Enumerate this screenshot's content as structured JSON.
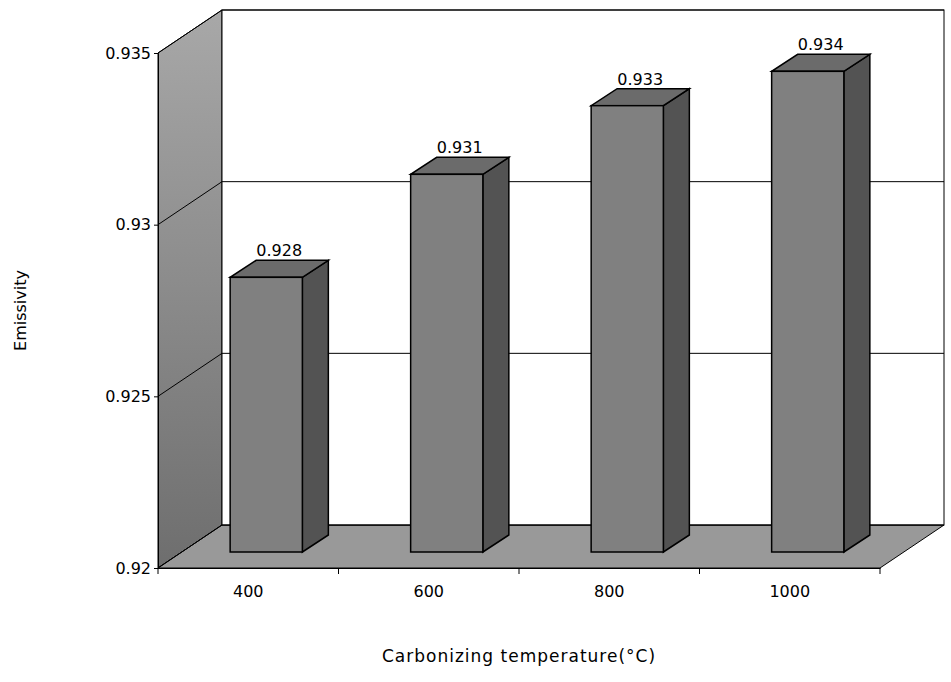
{
  "chart_data": {
    "type": "bar",
    "categories": [
      "400",
      "600",
      "800",
      "1000"
    ],
    "values": [
      0.928,
      0.931,
      0.933,
      0.934
    ],
    "color": "#808080",
    "ylim": [
      0.92,
      0.935
    ],
    "yticks": [
      0.92,
      0.925,
      0.93,
      0.935
    ],
    "grid": true,
    "data_labels": true,
    "x_label": "Carbonizing temperature(°C)",
    "y_label": "Emissivity"
  }
}
